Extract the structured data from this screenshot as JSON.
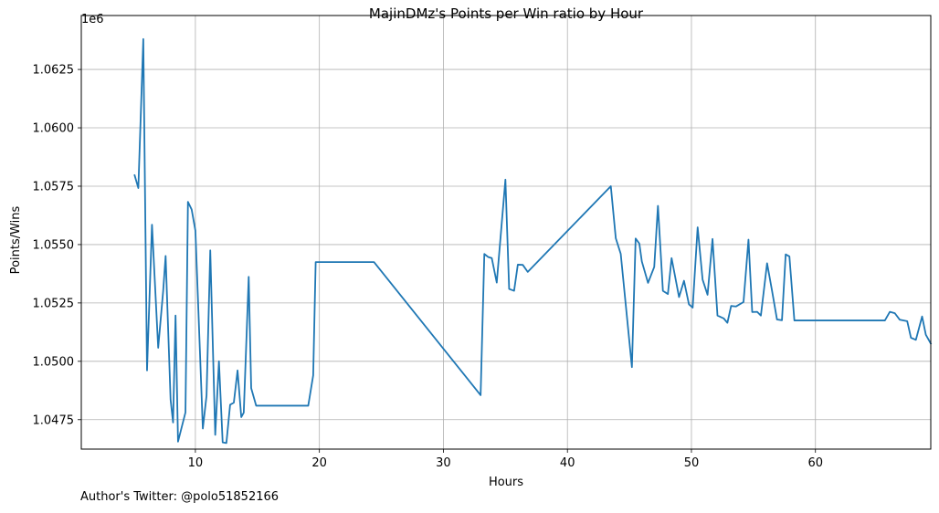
{
  "footer": {
    "text": "Author's Twitter: @polo51852166"
  },
  "chart_data": {
    "type": "line",
    "title": "MajinDMz's Points per Win ratio by Hour",
    "xlabel": "Hours",
    "ylabel": "Points/Wins",
    "y_offset_label": "1e6",
    "xlim": [
      0.8,
      69.3
    ],
    "ylim": [
      1046240,
      1064810
    ],
    "x_ticks": [
      10,
      20,
      30,
      40,
      50,
      60
    ],
    "x_tick_labels": [
      "10",
      "20",
      "30",
      "40",
      "50",
      "60"
    ],
    "y_ticks": [
      1047500,
      1050000,
      1052500,
      1055000,
      1057500,
      1060000,
      1062500
    ],
    "y_tick_labels": [
      "1.0475",
      "1.0500",
      "1.0525",
      "1.0550",
      "1.0575",
      "1.0600",
      "1.0625"
    ],
    "grid": true,
    "line_color": "#1f77b4",
    "series": [
      {
        "name": "",
        "color": "#1f77b4",
        "points": [
          [
            5.1,
            1057970
          ],
          [
            5.4,
            1057420
          ],
          [
            5.8,
            1063800
          ],
          [
            6.1,
            1049610
          ],
          [
            6.5,
            1055850
          ],
          [
            7.0,
            1050580
          ],
          [
            7.4,
            1053000
          ],
          [
            7.6,
            1054510
          ],
          [
            8.0,
            1048360
          ],
          [
            8.2,
            1047380
          ],
          [
            8.4,
            1051960
          ],
          [
            8.6,
            1046560
          ],
          [
            9.2,
            1047810
          ],
          [
            9.4,
            1056830
          ],
          [
            9.7,
            1056500
          ],
          [
            10.0,
            1055600
          ],
          [
            10.6,
            1047120
          ],
          [
            10.9,
            1048530
          ],
          [
            11.2,
            1054750
          ],
          [
            11.6,
            1046850
          ],
          [
            11.9,
            1050000
          ],
          [
            12.2,
            1046530
          ],
          [
            12.5,
            1046500
          ],
          [
            12.8,
            1048140
          ],
          [
            13.1,
            1048230
          ],
          [
            13.4,
            1049610
          ],
          [
            13.7,
            1047610
          ],
          [
            13.9,
            1047800
          ],
          [
            14.3,
            1053620
          ],
          [
            14.5,
            1048850
          ],
          [
            14.9,
            1048100
          ],
          [
            17.4,
            1048100
          ],
          [
            19.1,
            1048100
          ],
          [
            19.5,
            1049400
          ],
          [
            19.7,
            1054250
          ],
          [
            24.4,
            1054250
          ],
          [
            33.0,
            1048550
          ],
          [
            33.3,
            1054600
          ],
          [
            33.6,
            1054470
          ],
          [
            33.9,
            1054420
          ],
          [
            34.3,
            1053370
          ],
          [
            35.0,
            1057780
          ],
          [
            35.3,
            1053100
          ],
          [
            35.7,
            1053020
          ],
          [
            36.0,
            1054140
          ],
          [
            36.4,
            1054130
          ],
          [
            36.8,
            1053830
          ],
          [
            43.5,
            1057500
          ],
          [
            43.9,
            1055270
          ],
          [
            44.3,
            1054600
          ],
          [
            45.2,
            1049750
          ],
          [
            45.5,
            1055260
          ],
          [
            45.8,
            1055040
          ],
          [
            46.0,
            1054280
          ],
          [
            46.5,
            1053360
          ],
          [
            47.0,
            1054040
          ],
          [
            47.3,
            1056660
          ],
          [
            47.7,
            1053020
          ],
          [
            48.1,
            1052880
          ],
          [
            48.4,
            1054420
          ],
          [
            49.0,
            1052750
          ],
          [
            49.4,
            1053450
          ],
          [
            49.8,
            1052440
          ],
          [
            50.1,
            1052300
          ],
          [
            50.5,
            1055740
          ],
          [
            50.9,
            1053500
          ],
          [
            51.3,
            1052850
          ],
          [
            51.7,
            1055240
          ],
          [
            52.1,
            1051960
          ],
          [
            52.6,
            1051840
          ],
          [
            52.9,
            1051650
          ],
          [
            53.2,
            1052370
          ],
          [
            53.6,
            1052350
          ],
          [
            54.2,
            1052540
          ],
          [
            54.6,
            1055210
          ],
          [
            54.9,
            1052110
          ],
          [
            55.3,
            1052120
          ],
          [
            55.6,
            1051960
          ],
          [
            56.1,
            1054200
          ],
          [
            56.5,
            1053020
          ],
          [
            56.9,
            1051790
          ],
          [
            57.3,
            1051760
          ],
          [
            57.6,
            1054580
          ],
          [
            57.9,
            1054490
          ],
          [
            58.3,
            1051750
          ],
          [
            63.6,
            1051750
          ],
          [
            65.6,
            1051750
          ],
          [
            66.0,
            1052120
          ],
          [
            66.4,
            1052060
          ],
          [
            66.8,
            1051780
          ],
          [
            67.4,
            1051720
          ],
          [
            67.7,
            1051010
          ],
          [
            68.1,
            1050920
          ],
          [
            68.6,
            1051920
          ],
          [
            68.9,
            1051140
          ],
          [
            69.3,
            1050760
          ]
        ]
      }
    ]
  }
}
